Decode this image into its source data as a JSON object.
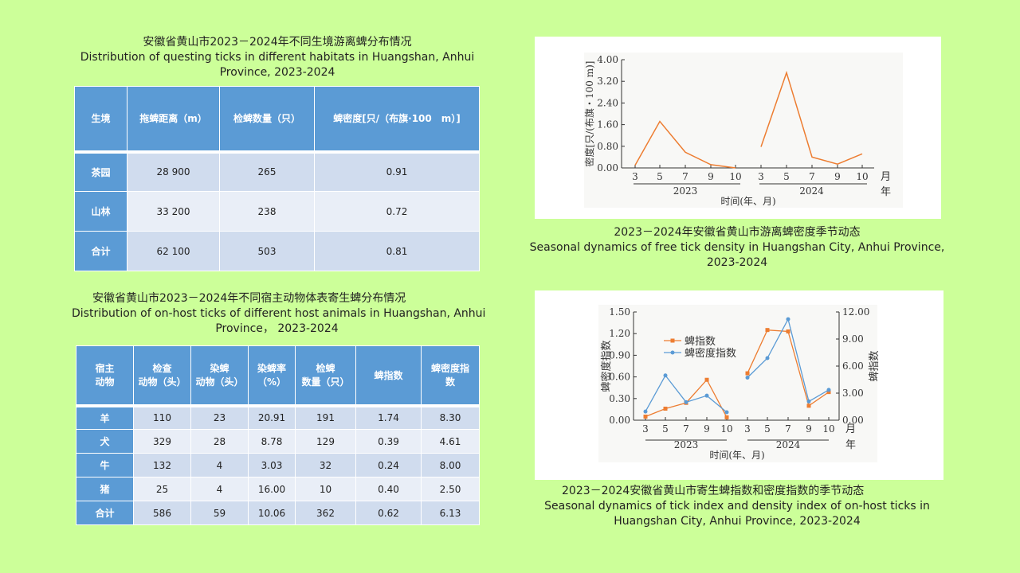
{
  "table1": {
    "title_cn": "安徽省黄山市2023－2024年不同生境游离蜱分布情况",
    "title_en1": "Distribution of questing ticks in different habitats in Huangshan, Anhui",
    "title_en2": "Province, 2023-2024",
    "headers": [
      "生境",
      "拖蜱距离（m）",
      "检蜱数量（只）",
      "蜱密度[只/（布旗·100　m）]"
    ],
    "rows": [
      [
        "茶园",
        "28 900",
        "265",
        "0.91"
      ],
      [
        "山林",
        "33 200",
        "238",
        "0.72"
      ],
      [
        "合计",
        "62 100",
        "503",
        "0.81"
      ]
    ]
  },
  "table2": {
    "title_cn": "安徽省黄山市2023－2024年不同宿主动物体表寄生蜱分布情况",
    "title_en1": "Distribution of on-host ticks of different host animals in Huangshan, Anhui",
    "title_en2": "Province，  2023-2024",
    "headers": [
      [
        "宿主",
        "动物"
      ],
      [
        "检查",
        "动物（头）"
      ],
      [
        "染蜱",
        "动物（头）"
      ],
      [
        "染蜱率",
        "（%）"
      ],
      [
        "检蜱",
        "数量（只）"
      ],
      [
        "蜱指数",
        ""
      ],
      [
        "蜱密度指",
        "数"
      ]
    ],
    "rows": [
      [
        "羊",
        "110",
        "23",
        "20.91",
        "191",
        "1.74",
        "8.30"
      ],
      [
        "犬",
        "329",
        "28",
        "8.78",
        "129",
        "0.39",
        "4.61"
      ],
      [
        "牛",
        "132",
        "4",
        "3.03",
        "32",
        "0.24",
        "8.00"
      ],
      [
        "猪",
        "25",
        "4",
        "16.00",
        "10",
        "0.40",
        "2.50"
      ],
      [
        "合计",
        "586",
        "59",
        "10.06",
        "362",
        "0.62",
        "6.13"
      ]
    ]
  },
  "caption1": {
    "cn": "2023－2024年安徽省黄山市游离蜱密度季节动态",
    "en1": "Seasonal dynamics of free tick density in Huangshan City, Anhui Province,",
    "en2": "2023-2024"
  },
  "caption2": {
    "cn": "2023－2024安徽省黄山市寄生蜱指数和密度指数的季节动态",
    "en1": "Seasonal dynamics of tick index and density index of on-host ticks in",
    "en2": "Huangshan City, Anhui Province, 2023-2024"
  },
  "chart_data": [
    {
      "type": "line",
      "ylabel": "密度[只/(布旗・100 m)]",
      "xlabel": "时间(年、月)",
      "month_unit": "月",
      "year_unit": "年",
      "yticks": [
        "0.00",
        "0.80",
        "1.60",
        "2.40",
        "3.20",
        "4.00"
      ],
      "ylim": [
        0,
        4
      ],
      "years": [
        "2023",
        "2024"
      ],
      "months": [
        "3",
        "5",
        "7",
        "9",
        "10"
      ],
      "color": "#ed7d31",
      "series": [
        {
          "name": "2023",
          "values": [
            0.1,
            1.72,
            0.58,
            0.12,
            0.0
          ]
        },
        {
          "name": "2024",
          "values": [
            0.78,
            3.52,
            0.4,
            0.14,
            0.52
          ]
        }
      ]
    },
    {
      "type": "line",
      "ylabel_left": "蜱密度指数",
      "ylabel_right": "蜱指数",
      "xlabel": "时间(年、月)",
      "month_unit": "月",
      "year_unit": "年",
      "yticks_left": [
        "0.00",
        "0.30",
        "0.60",
        "0.90",
        "1.20",
        "1.50"
      ],
      "yticks_right": [
        "0.00",
        "3.00",
        "6.00",
        "9.00",
        "12.00"
      ],
      "ylim_left": [
        0,
        1.5
      ],
      "ylim_right": [
        0,
        12
      ],
      "years": [
        "2023",
        "2024"
      ],
      "months": [
        "3",
        "5",
        "7",
        "9",
        "10"
      ],
      "series": [
        {
          "name": "蜱指数",
          "axis": "right",
          "color": "#ed7d31",
          "values": [
            [
              0.4,
              1.28,
              1.92,
              4.48,
              0.32
            ],
            [
              5.2,
              10.0,
              9.84,
              1.6,
              3.12
            ]
          ]
        },
        {
          "name": "蜱密度指数",
          "axis": "left",
          "color": "#5b9bd5",
          "values": [
            [
              0.12,
              0.62,
              0.25,
              0.34,
              0.11
            ],
            [
              0.59,
              0.86,
              1.4,
              0.26,
              0.42
            ]
          ]
        }
      ]
    }
  ]
}
